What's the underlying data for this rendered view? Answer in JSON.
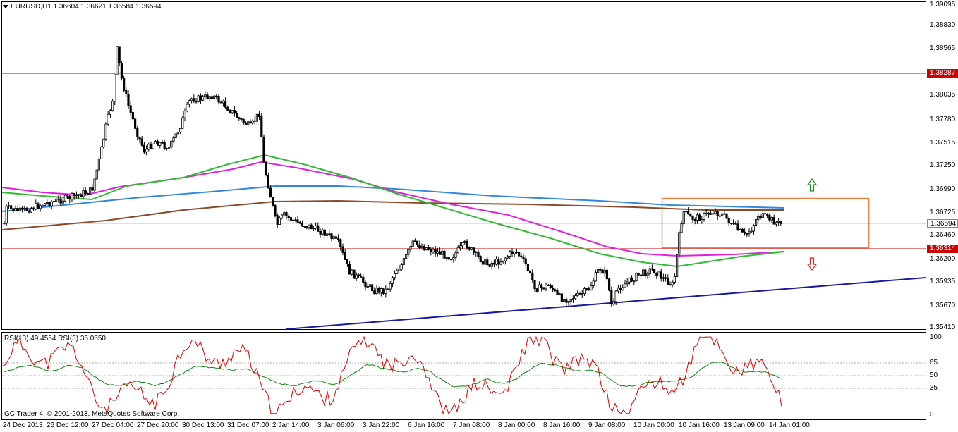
{
  "window": {
    "symbol_title": "EURUSD,H1",
    "ohlc": "1.36604 1.36621 1.36584 1.36594"
  },
  "price_axis": {
    "labels": [
      "1.39095",
      "1.38830",
      "1.38565",
      "1.38035",
      "1.37780",
      "1.37515",
      "1.37250",
      "1.36990",
      "1.36725",
      "1.36460",
      "1.36200",
      "1.35935",
      "1.35670",
      "1.35410"
    ]
  },
  "price_badges": {
    "resistance": "1.38287",
    "support": "1.36314",
    "current": "1.36594"
  },
  "levels": {
    "resistance": 1.38287,
    "support": 1.36314,
    "current": 1.36594,
    "top": 1.39095,
    "bottom": 1.3541
  },
  "rsi_panel": {
    "title": "RSI(13) 49.4554  RSI(3) 36.0650",
    "axis_labels": [
      "100",
      "65",
      "50",
      "35",
      "0"
    ]
  },
  "time_axis": {
    "labels": [
      "24 Dec 2013",
      "26 Dec 12:00",
      "27 Dec 04:00",
      "27 Dec 20:00",
      "30 Dec 13:00",
      "31 Dec 07:00",
      "2 Jan 14:00",
      "3 Jan 06:00",
      "3 Jan 22:00",
      "6 Jan 16:00",
      "7 Jan 08:00",
      "8 Jan 00:00",
      "8 Jan 16:00",
      "9 Jan 08:00",
      "10 Jan 00:00",
      "10 Jan 16:00",
      "13 Jan 09:00",
      "14 Jan 01:00"
    ]
  },
  "footer": {
    "copyright": "GC Trader 4, © 2001-2013, MetaQuotes Software Corp."
  },
  "colors": {
    "resistance_line": "#cc0000",
    "support_line": "#cc0000",
    "current_line": "#c0c0c0",
    "ma_green": "#33bb33",
    "ma_magenta": "#dd22dd",
    "ma_blue": "#3388dd",
    "ma_brown": "#8b4a2b",
    "trendline": "#1a1aa0",
    "range_box": "#f08040",
    "arrow_up": "#1a8a1a",
    "arrow_down": "#dd2222",
    "rsi13": "#118811",
    "rsi3": "#dd0000",
    "candle": "#000000"
  }
}
